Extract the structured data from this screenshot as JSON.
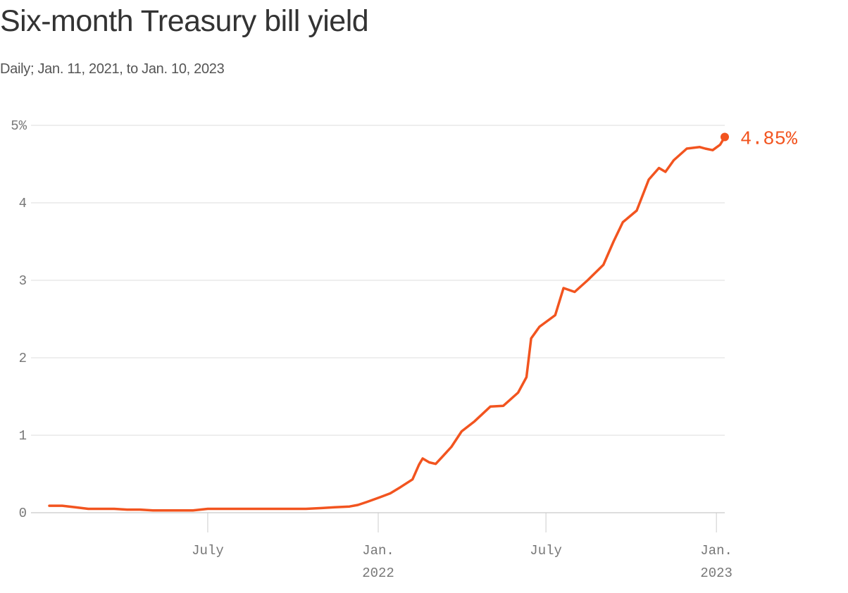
{
  "title": "Six-month Treasury bill yield",
  "subtitle": "Daily; Jan. 11, 2021, to Jan. 10, 2023",
  "chart_data": {
    "type": "line",
    "title": "Six-month Treasury bill yield",
    "subtitle": "Daily; Jan. 11, 2021, to Jan. 10, 2023",
    "xlabel": "",
    "ylabel": "",
    "ylim": [
      0,
      5
    ],
    "xlim": [
      "2021-01-11",
      "2023-01-10"
    ],
    "grid": "horizontal",
    "y_ticks": [
      {
        "value": 5,
        "label": "5%"
      },
      {
        "value": 4,
        "label": "4"
      },
      {
        "value": 3,
        "label": "3"
      },
      {
        "value": 2,
        "label": "2"
      },
      {
        "value": 1,
        "label": "1"
      },
      {
        "value": 0,
        "label": "0"
      }
    ],
    "x_ticks": [
      {
        "date": "2021-07-01",
        "label": "July",
        "sublabel": ""
      },
      {
        "date": "2022-01-01",
        "label": "Jan.",
        "sublabel": "2022"
      },
      {
        "date": "2022-07-01",
        "label": "July",
        "sublabel": ""
      },
      {
        "date": "2023-01-01",
        "label": "Jan.",
        "sublabel": "2023"
      }
    ],
    "series": [
      {
        "color": "#f2541f",
        "points": [
          [
            "2021-01-11",
            0.09
          ],
          [
            "2021-01-25",
            0.09
          ],
          [
            "2021-02-08",
            0.07
          ],
          [
            "2021-02-22",
            0.05
          ],
          [
            "2021-03-08",
            0.05
          ],
          [
            "2021-03-22",
            0.05
          ],
          [
            "2021-04-05",
            0.04
          ],
          [
            "2021-04-19",
            0.04
          ],
          [
            "2021-05-03",
            0.03
          ],
          [
            "2021-05-17",
            0.03
          ],
          [
            "2021-06-01",
            0.03
          ],
          [
            "2021-06-15",
            0.03
          ],
          [
            "2021-07-01",
            0.05
          ],
          [
            "2021-07-15",
            0.05
          ],
          [
            "2021-08-02",
            0.05
          ],
          [
            "2021-08-16",
            0.05
          ],
          [
            "2021-09-01",
            0.05
          ],
          [
            "2021-09-15",
            0.05
          ],
          [
            "2021-10-01",
            0.05
          ],
          [
            "2021-10-15",
            0.05
          ],
          [
            "2021-11-01",
            0.06
          ],
          [
            "2021-11-15",
            0.07
          ],
          [
            "2021-12-01",
            0.08
          ],
          [
            "2021-12-10",
            0.1
          ],
          [
            "2021-12-20",
            0.14
          ],
          [
            "2022-01-03",
            0.2
          ],
          [
            "2022-01-14",
            0.25
          ],
          [
            "2022-01-25",
            0.33
          ],
          [
            "2022-02-07",
            0.43
          ],
          [
            "2022-02-14",
            0.62
          ],
          [
            "2022-02-18",
            0.7
          ],
          [
            "2022-02-25",
            0.65
          ],
          [
            "2022-03-04",
            0.63
          ],
          [
            "2022-03-11",
            0.72
          ],
          [
            "2022-03-21",
            0.85
          ],
          [
            "2022-04-01",
            1.05
          ],
          [
            "2022-04-15",
            1.18
          ],
          [
            "2022-05-02",
            1.37
          ],
          [
            "2022-05-16",
            1.38
          ],
          [
            "2022-06-01",
            1.55
          ],
          [
            "2022-06-10",
            1.75
          ],
          [
            "2022-06-15",
            2.25
          ],
          [
            "2022-06-24",
            2.4
          ],
          [
            "2022-07-11",
            2.55
          ],
          [
            "2022-07-20",
            2.9
          ],
          [
            "2022-08-01",
            2.85
          ],
          [
            "2022-08-15",
            3.0
          ],
          [
            "2022-09-01",
            3.2
          ],
          [
            "2022-09-12",
            3.5
          ],
          [
            "2022-09-22",
            3.75
          ],
          [
            "2022-10-07",
            3.9
          ],
          [
            "2022-10-20",
            4.3
          ],
          [
            "2022-10-31",
            4.45
          ],
          [
            "2022-11-07",
            4.4
          ],
          [
            "2022-11-16",
            4.55
          ],
          [
            "2022-11-30",
            4.7
          ],
          [
            "2022-12-14",
            4.72
          ],
          [
            "2022-12-20",
            4.7
          ],
          [
            "2022-12-28",
            4.68
          ],
          [
            "2023-01-05",
            4.75
          ],
          [
            "2023-01-10",
            4.85
          ]
        ]
      }
    ],
    "end_label": "4.85%"
  }
}
